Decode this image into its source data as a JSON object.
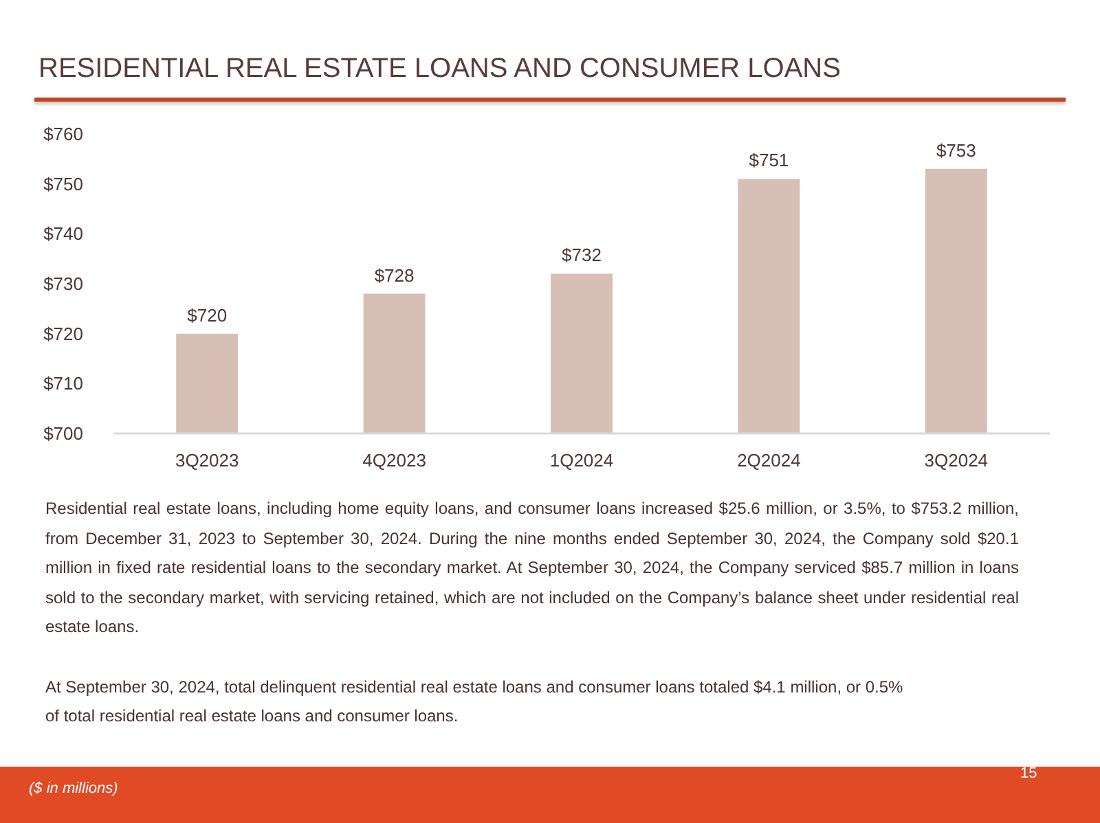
{
  "chart_data": {
    "type": "bar",
    "title": "RESIDENTIAL REAL ESTATE LOANS AND CONSUMER LOANS",
    "categories": [
      "3Q2023",
      "4Q2023",
      "1Q2024",
      "2Q2024",
      "3Q2024"
    ],
    "values": [
      720,
      728,
      732,
      751,
      753
    ],
    "value_labels": [
      "$720",
      "$728",
      "$732",
      "$751",
      "$753"
    ],
    "color": "#d7bfb6",
    "ylim": [
      700,
      760
    ],
    "yticks": [
      {
        "value": 700,
        "label": "$700"
      },
      {
        "value": 710,
        "label": "$710"
      },
      {
        "value": 720,
        "label": "$720"
      },
      {
        "value": 730,
        "label": "$730"
      },
      {
        "value": 740,
        "label": "$740"
      },
      {
        "value": 750,
        "label": "$750"
      },
      {
        "value": 760,
        "label": "$760"
      }
    ],
    "grid": false,
    "annotations": [
      "Residential real estate loans, including home equity loans, and consumer loans increased $25.6 million, or 3.5%, to $753.2 million, from December 31, 2023 to September 30, 2024. During the nine months ended September 30, 2024, the Company sold $20.1 million in fixed rate residential loans to the secondary market. At September 30, 2024, the Company serviced $85.7 million in loans sold to the secondary market, with servicing retained, which are not included on the Company’s balance sheet under residential real estate loans.",
      "At September 30, 2024, total delinquent residential real estate loans and consumer loans totaled $4.1 million, or 0.5% of total residential real estate loans and consumer loans.",
      "($ in millions)",
      "15"
    ]
  }
}
